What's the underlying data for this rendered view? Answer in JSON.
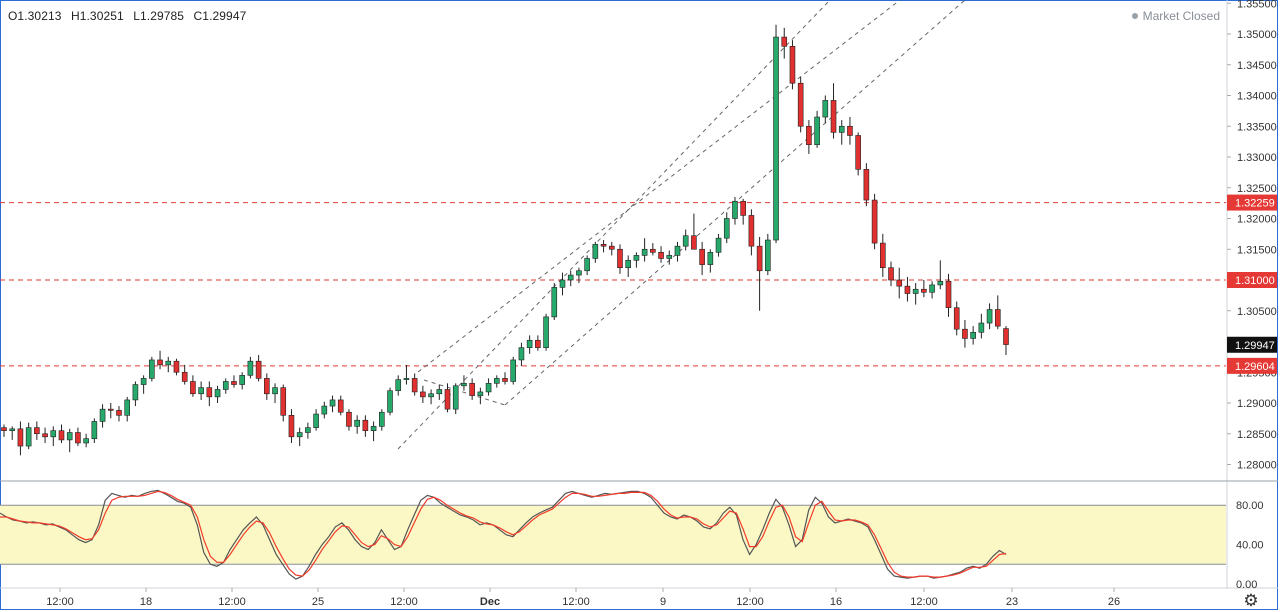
{
  "header": {
    "ohlc": [
      "O1.30213",
      "H1.30251",
      "L1.29785",
      "C1.29947"
    ],
    "market_status": "Market Closed"
  },
  "price_axis": {
    "ticks": [
      "1.35500",
      "1.35000",
      "1.34500",
      "1.34000",
      "1.33500",
      "1.33000",
      "1.32500",
      "1.32000",
      "1.31500",
      "1.31000",
      "1.30500",
      "1.30000",
      "1.29500",
      "1.29000",
      "1.28500",
      "1.28000"
    ],
    "labels": [
      {
        "text": "1.32259",
        "value": 1.32259,
        "color": "#e53935"
      },
      {
        "text": "1.31000",
        "value": 1.31,
        "color": "#e53935"
      },
      {
        "text": "1.29947",
        "value": 1.29947,
        "color": "#111111"
      },
      {
        "text": "1.29604",
        "value": 1.29604,
        "color": "#e53935"
      }
    ]
  },
  "oscillator_axis": {
    "ticks": [
      "80.00",
      "40.00",
      "0.00"
    ]
  },
  "time_axis": {
    "labels": [
      "12:00",
      "18",
      "12:00",
      "25",
      "12:00",
      "Dec",
      "12:00",
      "9",
      "12:00",
      "16",
      "12:00",
      "23",
      "26"
    ]
  },
  "colors": {
    "up": "#26a96b",
    "down": "#e0302f",
    "line_k": "#555555",
    "line_d": "#f23b2b",
    "band": "#fbf8c5",
    "level": "#e53935"
  },
  "chart_data": {
    "type": "candlestick",
    "price_range": [
      1.2775,
      1.3555
    ],
    "horizontal_levels": [
      1.32259,
      1.31,
      1.29604
    ],
    "channel": "ascending dashed channel",
    "candles_ohlc": [
      [
        1.286,
        1.2865,
        1.2845,
        1.2855
      ],
      [
        1.2855,
        1.2862,
        1.284,
        1.2858
      ],
      [
        1.2858,
        1.287,
        1.2815,
        1.283
      ],
      [
        1.283,
        1.2868,
        1.2825,
        1.286
      ],
      [
        1.286,
        1.287,
        1.284,
        1.285
      ],
      [
        1.285,
        1.286,
        1.2835,
        1.2845
      ],
      [
        1.2845,
        1.2862,
        1.283,
        1.2855
      ],
      [
        1.2855,
        1.2865,
        1.2835,
        1.284
      ],
      [
        1.284,
        1.2858,
        1.282,
        1.2852
      ],
      [
        1.2852,
        1.286,
        1.283,
        1.2835
      ],
      [
        1.2835,
        1.285,
        1.2828,
        1.2842
      ],
      [
        1.2842,
        1.2875,
        1.2835,
        1.287
      ],
      [
        1.287,
        1.2898,
        1.286,
        1.289
      ],
      [
        1.289,
        1.29,
        1.2875,
        1.2888
      ],
      [
        1.2888,
        1.2895,
        1.287,
        1.288
      ],
      [
        1.288,
        1.291,
        1.287,
        1.2905
      ],
      [
        1.2905,
        1.2935,
        1.2895,
        1.293
      ],
      [
        1.293,
        1.2945,
        1.2915,
        1.294
      ],
      [
        1.294,
        1.2975,
        1.2935,
        1.297
      ],
      [
        1.297,
        1.2985,
        1.2955,
        1.2962
      ],
      [
        1.2962,
        1.2975,
        1.295,
        1.2968
      ],
      [
        1.2968,
        1.2972,
        1.2945,
        1.295
      ],
      [
        1.295,
        1.2962,
        1.293,
        1.2935
      ],
      [
        1.2935,
        1.2945,
        1.291,
        1.2915
      ],
      [
        1.2915,
        1.2935,
        1.2905,
        1.2925
      ],
      [
        1.2925,
        1.2935,
        1.2895,
        1.291
      ],
      [
        1.291,
        1.2928,
        1.29,
        1.2922
      ],
      [
        1.2922,
        1.294,
        1.2915,
        1.2935
      ],
      [
        1.2935,
        1.2945,
        1.2925,
        1.293
      ],
      [
        1.293,
        1.295,
        1.2922,
        1.2945
      ],
      [
        1.2945,
        1.2975,
        1.294,
        1.2968
      ],
      [
        1.2968,
        1.2978,
        1.2935,
        1.294
      ],
      [
        1.294,
        1.2948,
        1.2905,
        1.2915
      ],
      [
        1.2915,
        1.2932,
        1.29,
        1.2925
      ],
      [
        1.2925,
        1.293,
        1.287,
        1.288
      ],
      [
        1.288,
        1.289,
        1.2835,
        1.2845
      ],
      [
        1.2845,
        1.286,
        1.283,
        1.2852
      ],
      [
        1.2852,
        1.2868,
        1.2842,
        1.286
      ],
      [
        1.286,
        1.289,
        1.2855,
        1.2882
      ],
      [
        1.2882,
        1.2902,
        1.2875,
        1.2895
      ],
      [
        1.2895,
        1.2912,
        1.2885,
        1.2905
      ],
      [
        1.2905,
        1.2912,
        1.288,
        1.2885
      ],
      [
        1.2885,
        1.289,
        1.2855,
        1.2862
      ],
      [
        1.2862,
        1.288,
        1.285,
        1.2872
      ],
      [
        1.2872,
        1.288,
        1.2845,
        1.2855
      ],
      [
        1.2855,
        1.287,
        1.2838,
        1.2862
      ],
      [
        1.2862,
        1.289,
        1.2855,
        1.2885
      ],
      [
        1.2885,
        1.2925,
        1.288,
        1.292
      ],
      [
        1.292,
        1.2945,
        1.2912,
        1.2938
      ],
      [
        1.2938,
        1.2962,
        1.293,
        1.294
      ],
      [
        1.294,
        1.2948,
        1.2912,
        1.2918
      ],
      [
        1.2918,
        1.2928,
        1.29,
        1.291
      ],
      [
        1.291,
        1.2922,
        1.2898,
        1.2915
      ],
      [
        1.2915,
        1.293,
        1.2905,
        1.2922
      ],
      [
        1.2922,
        1.2932,
        1.2885,
        1.289
      ],
      [
        1.289,
        1.2932,
        1.2882,
        1.2928
      ],
      [
        1.2928,
        1.2945,
        1.292,
        1.2932
      ],
      [
        1.2932,
        1.294,
        1.2905,
        1.2912
      ],
      [
        1.2912,
        1.2925,
        1.2898,
        1.2918
      ],
      [
        1.2918,
        1.294,
        1.2912,
        1.2932
      ],
      [
        1.2932,
        1.2945,
        1.2925,
        1.294
      ],
      [
        1.294,
        1.295,
        1.293,
        1.2935
      ],
      [
        1.2935,
        1.2975,
        1.293,
        1.297
      ],
      [
        1.297,
        1.2998,
        1.296,
        1.299
      ],
      [
        1.299,
        1.301,
        1.298,
        1.3002
      ],
      [
        1.3002,
        1.301,
        1.2985,
        1.299
      ],
      [
        1.299,
        1.3045,
        1.2985,
        1.304
      ],
      [
        1.304,
        1.3095,
        1.3035,
        1.3088
      ],
      [
        1.3088,
        1.3112,
        1.3075,
        1.31
      ],
      [
        1.31,
        1.3115,
        1.309,
        1.3108
      ],
      [
        1.3108,
        1.312,
        1.3095,
        1.3115
      ],
      [
        1.3115,
        1.314,
        1.3108,
        1.3135
      ],
      [
        1.3135,
        1.3162,
        1.3128,
        1.3158
      ],
      [
        1.3158,
        1.3165,
        1.3145,
        1.3155
      ],
      [
        1.3155,
        1.3162,
        1.314,
        1.315
      ],
      [
        1.315,
        1.3158,
        1.311,
        1.312
      ],
      [
        1.312,
        1.314,
        1.3105,
        1.3132
      ],
      [
        1.3132,
        1.3145,
        1.312,
        1.314
      ],
      [
        1.314,
        1.3168,
        1.313,
        1.315
      ],
      [
        1.315,
        1.316,
        1.314,
        1.3145
      ],
      [
        1.3145,
        1.3155,
        1.3128,
        1.3135
      ],
      [
        1.3135,
        1.3148,
        1.3125,
        1.314
      ],
      [
        1.314,
        1.3162,
        1.313,
        1.3155
      ],
      [
        1.3155,
        1.3182,
        1.3148,
        1.3172
      ],
      [
        1.3172,
        1.3208,
        1.316,
        1.315
      ],
      [
        1.315,
        1.3162,
        1.3108,
        1.3125
      ],
      [
        1.3125,
        1.315,
        1.3112,
        1.3145
      ],
      [
        1.3145,
        1.3175,
        1.3138,
        1.3168
      ],
      [
        1.3168,
        1.321,
        1.316,
        1.32
      ],
      [
        1.32,
        1.3235,
        1.319,
        1.3228
      ],
      [
        1.3228,
        1.3232,
        1.319,
        1.3205
      ],
      [
        1.3205,
        1.3215,
        1.314,
        1.3155
      ],
      [
        1.3155,
        1.317,
        1.305,
        1.3115
      ],
      [
        1.3115,
        1.3175,
        1.3108,
        1.3165
      ],
      [
        1.3165,
        1.3515,
        1.316,
        1.3495
      ],
      [
        1.3495,
        1.351,
        1.346,
        1.348
      ],
      [
        1.348,
        1.349,
        1.341,
        1.342
      ],
      [
        1.342,
        1.343,
        1.334,
        1.335
      ],
      [
        1.335,
        1.336,
        1.3305,
        1.332
      ],
      [
        1.332,
        1.3375,
        1.3315,
        1.3365
      ],
      [
        1.3365,
        1.34,
        1.3355,
        1.3392
      ],
      [
        1.3392,
        1.342,
        1.333,
        1.334
      ],
      [
        1.334,
        1.336,
        1.332,
        1.335
      ],
      [
        1.335,
        1.3365,
        1.332,
        1.3335
      ],
      [
        1.3335,
        1.334,
        1.327,
        1.328
      ],
      [
        1.328,
        1.329,
        1.322,
        1.323
      ],
      [
        1.323,
        1.324,
        1.315,
        1.316
      ],
      [
        1.316,
        1.3175,
        1.3105,
        1.312
      ],
      [
        1.312,
        1.313,
        1.309,
        1.31
      ],
      [
        1.31,
        1.312,
        1.307,
        1.309
      ],
      [
        1.309,
        1.3105,
        1.3065,
        1.3078
      ],
      [
        1.3078,
        1.3095,
        1.306,
        1.3085
      ],
      [
        1.3085,
        1.31,
        1.3072,
        1.308
      ],
      [
        1.308,
        1.3098,
        1.307,
        1.3092
      ],
      [
        1.3092,
        1.3132,
        1.3085,
        1.3098
      ],
      [
        1.3098,
        1.311,
        1.304,
        1.3055
      ],
      [
        1.3055,
        1.3065,
        1.301,
        1.302
      ],
      [
        1.302,
        1.3035,
        1.299,
        1.3005
      ],
      [
        1.3005,
        1.3025,
        1.2995,
        1.3015
      ],
      [
        1.3015,
        1.3045,
        1.3005,
        1.303
      ],
      [
        1.303,
        1.3062,
        1.302,
        1.3052
      ],
      [
        1.3052,
        1.3075,
        1.302,
        1.3025
      ],
      [
        1.3021,
        1.3025,
        1.2978,
        1.2995
      ]
    ],
    "oscillator": {
      "range": [
        0,
        100
      ],
      "band": [
        20,
        80
      ],
      "k": [
        72,
        68,
        65,
        64,
        62,
        63,
        62,
        60,
        61,
        58,
        55,
        50,
        45,
        42,
        45,
        60,
        85,
        92,
        90,
        88,
        90,
        89,
        92,
        94,
        95,
        92,
        88,
        84,
        82,
        78,
        60,
        32,
        20,
        18,
        22,
        35,
        45,
        55,
        62,
        68,
        60,
        45,
        30,
        20,
        10,
        5,
        8,
        18,
        30,
        40,
        48,
        58,
        62,
        55,
        45,
        38,
        35,
        42,
        55,
        45,
        35,
        38,
        55,
        70,
        85,
        90,
        88,
        82,
        78,
        74,
        70,
        68,
        65,
        60,
        62,
        60,
        55,
        50,
        48,
        55,
        62,
        68,
        72,
        75,
        78,
        85,
        92,
        94,
        92,
        90,
        88,
        90,
        92,
        91,
        92,
        93,
        94,
        94,
        92,
        88,
        80,
        72,
        68,
        66,
        70,
        68,
        64,
        58,
        56,
        62,
        72,
        78,
        70,
        45,
        30,
        40,
        55,
        72,
        86,
        78,
        60,
        38,
        45,
        75,
        88,
        82,
        68,
        62,
        64,
        66,
        64,
        62,
        58,
        45,
        30,
        15,
        8,
        7,
        6,
        7,
        8,
        8,
        6,
        7,
        8,
        10,
        12,
        16,
        18,
        16,
        20,
        28,
        34,
        30
      ],
      "d": [
        68,
        68,
        66,
        64,
        63,
        62,
        62,
        61,
        60,
        59,
        56,
        52,
        48,
        45,
        46,
        55,
        72,
        85,
        88,
        89,
        89,
        89,
        90,
        92,
        94,
        93,
        90,
        86,
        83,
        80,
        68,
        45,
        28,
        22,
        22,
        30,
        40,
        50,
        58,
        64,
        62,
        52,
        38,
        26,
        15,
        9,
        8,
        14,
        24,
        35,
        44,
        53,
        59,
        58,
        50,
        42,
        38,
        40,
        49,
        46,
        40,
        38,
        48,
        62,
        76,
        86,
        88,
        85,
        80,
        76,
        72,
        69,
        67,
        63,
        61,
        60,
        57,
        53,
        50,
        53,
        59,
        65,
        70,
        73,
        76,
        82,
        88,
        92,
        92,
        91,
        89,
        89,
        90,
        91,
        92,
        92,
        93,
        93,
        93,
        90,
        84,
        76,
        70,
        67,
        68,
        68,
        66,
        61,
        58,
        60,
        67,
        74,
        72,
        56,
        38,
        38,
        48,
        64,
        78,
        80,
        68,
        48,
        43,
        62,
        80,
        84,
        74,
        65,
        64,
        65,
        65,
        63,
        60,
        50,
        36,
        22,
        12,
        8,
        7,
        7,
        8,
        8,
        7,
        7,
        8,
        9,
        11,
        14,
        17,
        17,
        18,
        24,
        30,
        31
      ]
    },
    "y_ticks_oscillator": [
      80,
      40,
      0
    ]
  }
}
